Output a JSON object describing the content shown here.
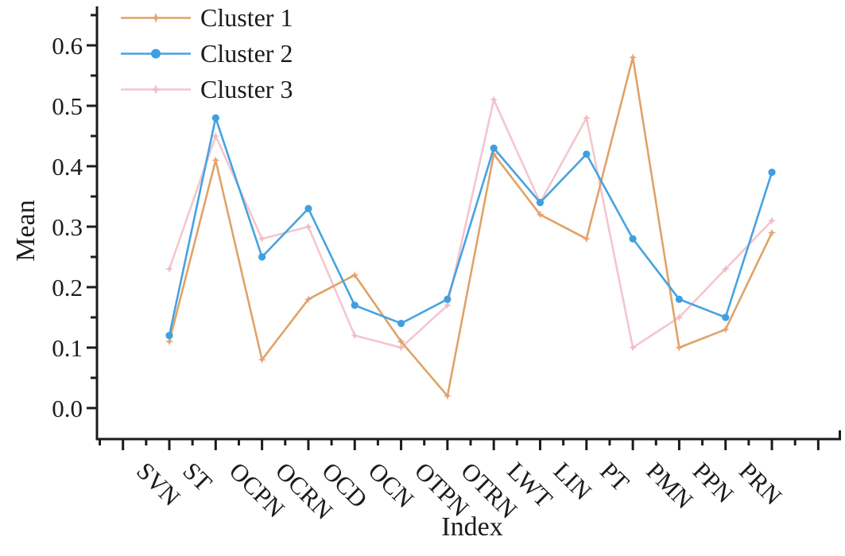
{
  "figure": {
    "background": "#ffffff",
    "axis_color": "#1b1b1b",
    "text_color": "#1b1b1b"
  },
  "chart_data": {
    "type": "line",
    "title": "",
    "xlabel": "Index",
    "ylabel": "Mean",
    "categories": [
      "SVN",
      "ST",
      "OCPN",
      "OCRN",
      "OCD",
      "OCN",
      "OTPN",
      "OTRN",
      "LWT",
      "LIN",
      "PT",
      "PMN",
      "PPN",
      "PRN"
    ],
    "y_ticks": [
      "0.0",
      "0.1",
      "0.2",
      "0.3",
      "0.4",
      "0.5",
      "0.6"
    ],
    "ylim": [
      0,
      0.65
    ],
    "grid": false,
    "legend_position": "top-left-inside",
    "series": [
      {
        "name": "Cluster 1",
        "color": "#dfa368",
        "marker": "star",
        "marker_color": "#eba074",
        "values": [
          0.11,
          0.41,
          0.08,
          0.18,
          0.22,
          0.11,
          0.02,
          0.42,
          0.32,
          0.28,
          0.58,
          0.1,
          0.13,
          0.29
        ]
      },
      {
        "name": "Cluster 2",
        "color": "#46a3e0",
        "marker": "circle",
        "marker_color": "#3f9fe0",
        "values": [
          0.12,
          0.48,
          0.25,
          0.33,
          0.17,
          0.14,
          0.18,
          0.43,
          0.34,
          0.42,
          0.28,
          0.18,
          0.15,
          0.39
        ]
      },
      {
        "name": "Cluster 3",
        "color": "#f4c6cd",
        "marker": "star",
        "marker_color": "#f2bac6",
        "values": [
          0.23,
          0.45,
          0.28,
          0.3,
          0.12,
          0.1,
          0.17,
          0.51,
          0.34,
          0.48,
          0.1,
          0.15,
          0.23,
          0.31
        ]
      }
    ]
  }
}
